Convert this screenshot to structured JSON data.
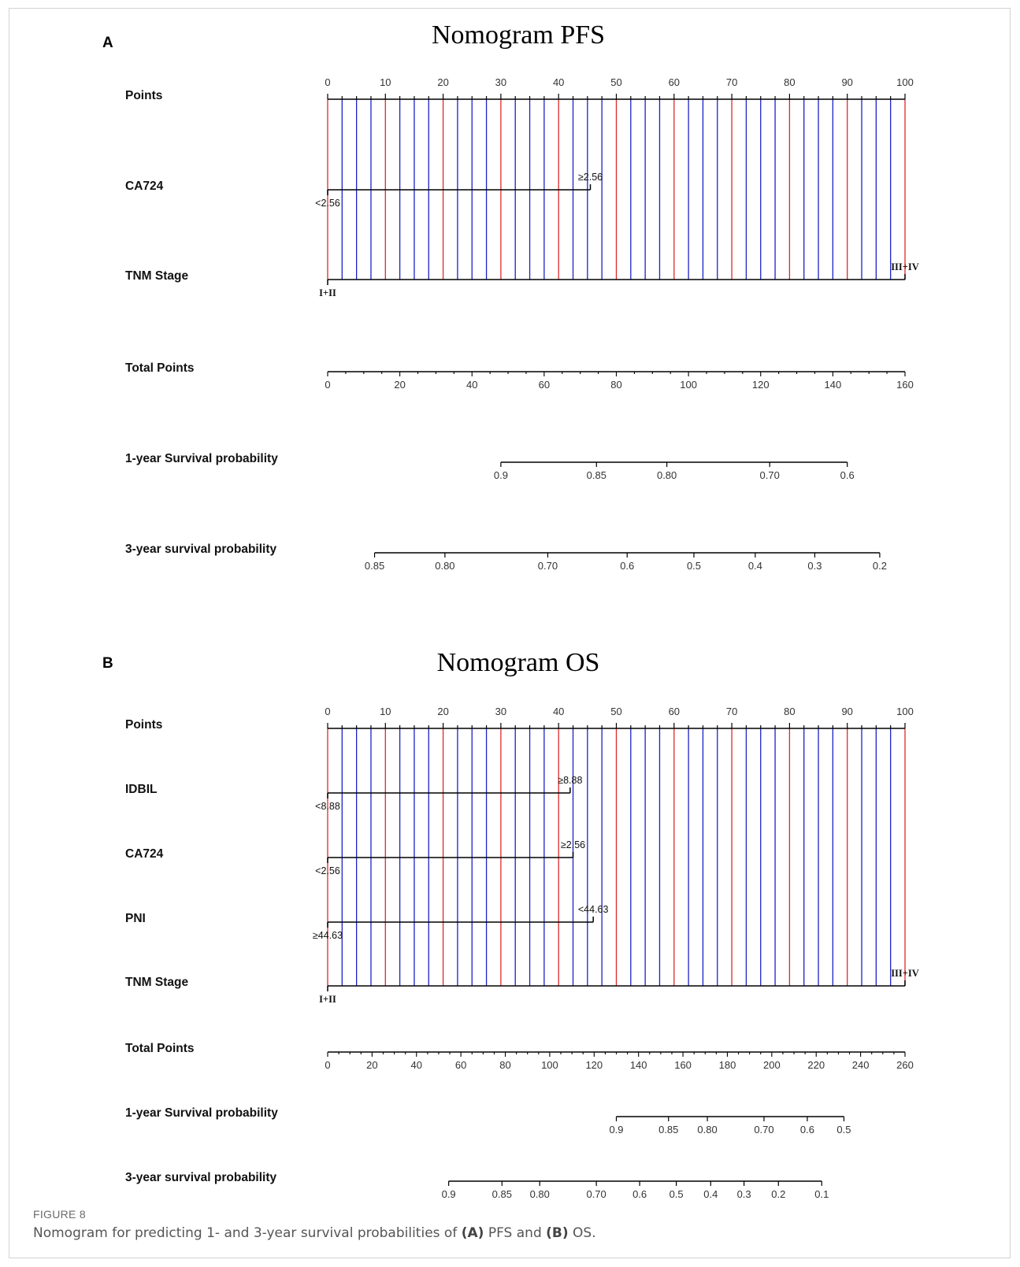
{
  "figure": {
    "number": "FIGURE 8",
    "caption_parts": [
      "Nomogram for predicting 1- and 3-year survival probabilities of ",
      "(A)",
      " PFS and ",
      "(B)",
      " OS."
    ]
  },
  "colors": {
    "major_line": "#e0282a",
    "minor_line": "#1c22c8",
    "axis": "#000000"
  },
  "chart_data": [
    {
      "type": "nomogram",
      "panel": "A",
      "title": "Nomogram PFS",
      "rows": [
        {
          "label": "Points",
          "kind": "points",
          "ticks": [
            0,
            10,
            20,
            30,
            40,
            50,
            60,
            70,
            80,
            90,
            100
          ]
        },
        {
          "label": "CA724",
          "kind": "factor",
          "levels": [
            {
              "label": "<2.56",
              "points": 0
            },
            {
              "label": "≥2.56",
              "points": 45.5
            }
          ]
        },
        {
          "label": "TNM Stage",
          "kind": "factor",
          "levels": [
            {
              "label": "I+II",
              "points": 0
            },
            {
              "label": "III+IV",
              "points": 100
            }
          ]
        },
        {
          "label": "Total Points",
          "kind": "total",
          "range": [
            0,
            160
          ],
          "ticks": [
            0,
            20,
            40,
            60,
            80,
            100,
            120,
            140,
            160
          ]
        },
        {
          "label": "1-year Survival probability",
          "kind": "probability",
          "ticks": [
            {
              "label": "0.9",
              "total_points": 48
            },
            {
              "label": "0.85",
              "total_points": 74.5
            },
            {
              "label": "0.80",
              "total_points": 94
            },
            {
              "label": "0.70",
              "total_points": 122.5
            },
            {
              "label": "0.6",
              "total_points": 144
            }
          ]
        },
        {
          "label": "3-year survival probability",
          "kind": "probability",
          "ticks": [
            {
              "label": "0.85",
              "total_points": 13
            },
            {
              "label": "0.80",
              "total_points": 32.5
            },
            {
              "label": "0.70",
              "total_points": 61
            },
            {
              "label": "0.6",
              "total_points": 83
            },
            {
              "label": "0.5",
              "total_points": 101.5
            },
            {
              "label": "0.4",
              "total_points": 118.5
            },
            {
              "label": "0.3",
              "total_points": 135
            },
            {
              "label": "0.2",
              "total_points": 153
            }
          ]
        }
      ]
    },
    {
      "type": "nomogram",
      "panel": "B",
      "title": "Nomogram OS",
      "rows": [
        {
          "label": "Points",
          "kind": "points",
          "ticks": [
            0,
            10,
            20,
            30,
            40,
            50,
            60,
            70,
            80,
            90,
            100
          ]
        },
        {
          "label": "IDBIL",
          "kind": "factor",
          "levels": [
            {
              "label": "<8.88",
              "points": 0
            },
            {
              "label": "≥8.88",
              "points": 42
            }
          ]
        },
        {
          "label": "CA724",
          "kind": "factor",
          "levels": [
            {
              "label": "<2.56",
              "points": 0
            },
            {
              "label": "≥2.56",
              "points": 42.5
            }
          ]
        },
        {
          "label": "PNI",
          "kind": "factor",
          "levels": [
            {
              "label": "≥44.63",
              "points": 0
            },
            {
              "label": "<44.63",
              "points": 46
            }
          ]
        },
        {
          "label": "TNM Stage",
          "kind": "factor",
          "levels": [
            {
              "label": "I+II",
              "points": 0
            },
            {
              "label": "III+IV",
              "points": 100
            }
          ]
        },
        {
          "label": "Total Points",
          "kind": "total",
          "range": [
            0,
            260
          ],
          "ticks": [
            0,
            20,
            40,
            60,
            80,
            100,
            120,
            140,
            160,
            180,
            200,
            220,
            240,
            260
          ]
        },
        {
          "label": "1-year Survival probability",
          "kind": "probability",
          "ticks": [
            {
              "label": "0.9",
              "total_points": 130
            },
            {
              "label": "0.85",
              "total_points": 153.5
            },
            {
              "label": "0.80",
              "total_points": 171
            },
            {
              "label": "0.70",
              "total_points": 196.5
            },
            {
              "label": "0.6",
              "total_points": 216
            },
            {
              "label": "0.5",
              "total_points": 232.5
            }
          ]
        },
        {
          "label": "3-year survival probability",
          "kind": "probability",
          "ticks": [
            {
              "label": "0.9",
              "total_points": 54.5
            },
            {
              "label": "0.85",
              "total_points": 78.5
            },
            {
              "label": "0.80",
              "total_points": 95.5
            },
            {
              "label": "0.70",
              "total_points": 121
            },
            {
              "label": "0.6",
              "total_points": 140.5
            },
            {
              "label": "0.5",
              "total_points": 157
            },
            {
              "label": "0.4",
              "total_points": 172.5
            },
            {
              "label": "0.3",
              "total_points": 187.5
            },
            {
              "label": "0.2",
              "total_points": 203
            },
            {
              "label": "0.1",
              "total_points": 222.5
            }
          ]
        }
      ]
    }
  ]
}
